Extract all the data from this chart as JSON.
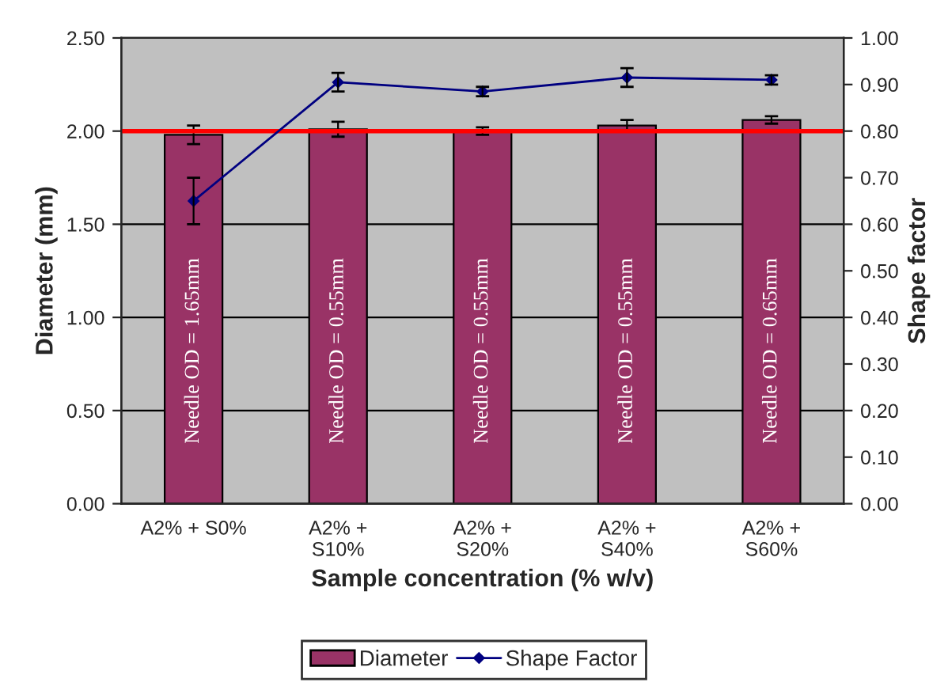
{
  "chart_data": {
    "type": "bar",
    "xlabel": "Sample concentration (% w/v)",
    "ylabel": "Diameter (mm)",
    "y2label": "Shape factor",
    "categories": [
      "A2% + S0%",
      "A2% +\nS10%",
      "A2% +\nS20%",
      "A2% +\nS40%",
      "A2% +\nS60%"
    ],
    "series": [
      {
        "name": "Diameter",
        "color": "#993366",
        "values": [
          1.98,
          2.01,
          2.0,
          2.03,
          2.06
        ],
        "errors": [
          0.05,
          0.04,
          0.02,
          0.03,
          0.02
        ]
      },
      {
        "name": "Shape Factor",
        "type": "line",
        "axis": "y2",
        "color": "#000080",
        "marker": "diamond",
        "values": [
          0.65,
          0.905,
          0.885,
          0.915,
          0.91
        ],
        "errors": [
          0.05,
          0.02,
          0.01,
          0.02,
          0.01
        ]
      }
    ],
    "ylim": [
      0,
      2.5
    ],
    "yticks": [
      {
        "value": 0,
        "label": "0.00"
      },
      {
        "value": 0.5,
        "label": "0.50"
      },
      {
        "value": 1,
        "label": "1.00"
      },
      {
        "value": 1.5,
        "label": "1.50"
      },
      {
        "value": 2,
        "label": "2.00"
      },
      {
        "value": 2.5,
        "label": "2.50"
      }
    ],
    "y2lim": [
      0,
      1
    ],
    "y2ticks": [
      {
        "value": 0,
        "label": "0.00"
      },
      {
        "value": 0.1,
        "label": "0.10"
      },
      {
        "value": 0.2,
        "label": "0.20"
      },
      {
        "value": 0.3,
        "label": "0.30"
      },
      {
        "value": 0.4,
        "label": "0.40"
      },
      {
        "value": 0.5,
        "label": "0.50"
      },
      {
        "value": 0.6,
        "label": "0.60"
      },
      {
        "value": 0.7,
        "label": "0.70"
      },
      {
        "value": 0.8,
        "label": "0.80"
      },
      {
        "value": 0.9,
        "label": "0.90"
      },
      {
        "value": 1,
        "label": "1.00"
      }
    ],
    "ref_lines": [
      {
        "axis": "y",
        "value": 2.0,
        "label": null,
        "color": "#ff0000"
      }
    ],
    "annotations": [
      "Needle OD = 1.65mm",
      "Needle OD = 0.55mm",
      "Needle OD = 0.55mm",
      "Needle OD = 0.55mm",
      "Needle OD = 0.65mm"
    ],
    "grid": "y",
    "legend": "bottom"
  }
}
